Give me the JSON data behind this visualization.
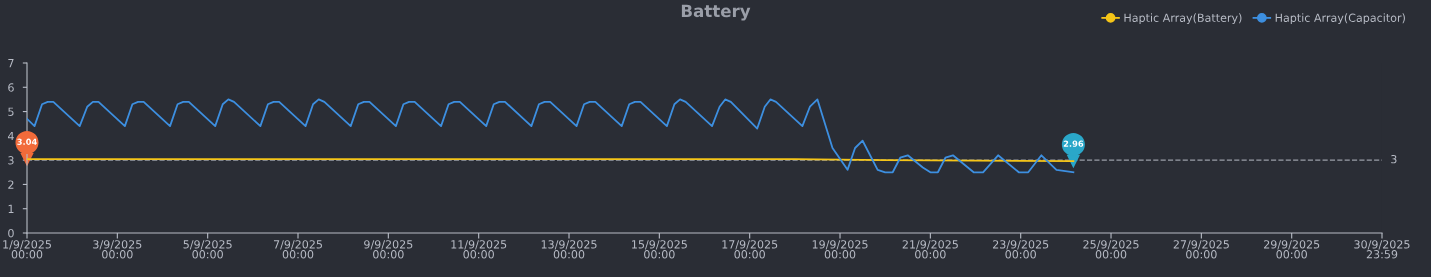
{
  "chart_data": {
    "type": "line",
    "title": "Battery",
    "legend": "top right",
    "grid": false,
    "xlim": [
      "2025-09-01T00:00",
      "2025-09-30T23:59"
    ],
    "ylim": [
      0,
      7
    ],
    "yticks": [
      0,
      1,
      2,
      3,
      4,
      5,
      6,
      7
    ],
    "xticks": [
      {
        "value": "2025-09-01T00:00",
        "label": "1/9/2025\n00:00"
      },
      {
        "value": "2025-09-03T00:00",
        "label": "3/9/2025\n00:00"
      },
      {
        "value": "2025-09-05T00:00",
        "label": "5/9/2025\n00:00"
      },
      {
        "value": "2025-09-07T00:00",
        "label": "7/9/2025\n00:00"
      },
      {
        "value": "2025-09-09T00:00",
        "label": "9/9/2025\n00:00"
      },
      {
        "value": "2025-09-11T00:00",
        "label": "11/9/2025\n00:00"
      },
      {
        "value": "2025-09-13T00:00",
        "label": "13/9/2025\n00:00"
      },
      {
        "value": "2025-09-15T00:00",
        "label": "15/9/2025\n00:00"
      },
      {
        "value": "2025-09-17T00:00",
        "label": "17/9/2025\n00:00"
      },
      {
        "value": "2025-09-19T00:00",
        "label": "19/9/2025\n00:00"
      },
      {
        "value": "2025-09-21T00:00",
        "label": "21/9/2025\n00:00"
      },
      {
        "value": "2025-09-23T00:00",
        "label": "23/9/2025\n00:00"
      },
      {
        "value": "2025-09-25T00:00",
        "label": "25/9/2025\n00:00"
      },
      {
        "value": "2025-09-27T00:00",
        "label": "27/9/2025\n00:00"
      },
      {
        "value": "2025-09-29T00:00",
        "label": "29/9/2025\n00:00"
      },
      {
        "value": "2025-09-30T23:59",
        "label": "30/9/2025\n23:59"
      }
    ],
    "series": [
      {
        "name": "Haptic Array(Battery)",
        "color": "#f5c518",
        "x": [
          "2025-09-01T00:00",
          "2025-09-18T00:00",
          "2025-09-20T00:00",
          "2025-09-24T04:00"
        ],
        "values": [
          3.04,
          3.04,
          3.0,
          2.96
        ]
      },
      {
        "name": "Haptic Array(Capacitor)",
        "color": "#3d8fe0",
        "x": [
          "2025-09-01T00:00",
          "2025-09-01T04:00",
          "2025-09-01T08:00",
          "2025-09-01T11:00",
          "2025-09-01T14:00",
          "2025-09-02T04:00",
          "2025-09-02T08:00",
          "2025-09-02T11:00",
          "2025-09-02T14:00",
          "2025-09-03T04:00",
          "2025-09-03T08:00",
          "2025-09-03T11:00",
          "2025-09-03T14:00",
          "2025-09-04T04:00",
          "2025-09-04T08:00",
          "2025-09-04T11:00",
          "2025-09-04T14:00",
          "2025-09-05T04:00",
          "2025-09-05T08:00",
          "2025-09-05T11:00",
          "2025-09-05T14:00",
          "2025-09-06T04:00",
          "2025-09-06T08:00",
          "2025-09-06T11:00",
          "2025-09-06T14:00",
          "2025-09-07T04:00",
          "2025-09-07T08:00",
          "2025-09-07T11:00",
          "2025-09-07T14:00",
          "2025-09-08T04:00",
          "2025-09-08T08:00",
          "2025-09-08T11:00",
          "2025-09-08T14:00",
          "2025-09-09T04:00",
          "2025-09-09T08:00",
          "2025-09-09T11:00",
          "2025-09-09T14:00",
          "2025-09-10T04:00",
          "2025-09-10T08:00",
          "2025-09-10T11:00",
          "2025-09-10T14:00",
          "2025-09-11T04:00",
          "2025-09-11T08:00",
          "2025-09-11T11:00",
          "2025-09-11T14:00",
          "2025-09-12T04:00",
          "2025-09-12T08:00",
          "2025-09-12T11:00",
          "2025-09-12T14:00",
          "2025-09-13T04:00",
          "2025-09-13T08:00",
          "2025-09-13T11:00",
          "2025-09-13T14:00",
          "2025-09-14T04:00",
          "2025-09-14T08:00",
          "2025-09-14T11:00",
          "2025-09-14T14:00",
          "2025-09-15T04:00",
          "2025-09-15T08:00",
          "2025-09-15T11:00",
          "2025-09-15T14:00",
          "2025-09-16T04:00",
          "2025-09-16T08:00",
          "2025-09-16T11:00",
          "2025-09-16T14:00",
          "2025-09-17T04:00",
          "2025-09-17T08:00",
          "2025-09-17T11:00",
          "2025-09-17T14:00",
          "2025-09-18T04:00",
          "2025-09-18T08:00",
          "2025-09-18T12:00",
          "2025-09-18T20:00",
          "2025-09-19T04:00",
          "2025-09-19T08:00",
          "2025-09-19T12:00",
          "2025-09-19T20:00",
          "2025-09-20T00:00",
          "2025-09-20T04:00",
          "2025-09-20T08:00",
          "2025-09-20T12:00",
          "2025-09-20T20:00",
          "2025-09-21T00:00",
          "2025-09-21T04:00",
          "2025-09-21T08:00",
          "2025-09-21T12:00",
          "2025-09-21T23:00",
          "2025-09-22T04:00",
          "2025-09-22T12:00",
          "2025-09-22T23:00",
          "2025-09-23T04:00",
          "2025-09-23T11:00",
          "2025-09-23T19:00",
          "2025-09-24T04:00"
        ],
        "values": [
          4.7,
          4.4,
          5.3,
          5.4,
          5.4,
          4.4,
          5.2,
          5.4,
          5.4,
          4.4,
          5.3,
          5.4,
          5.4,
          4.4,
          5.3,
          5.4,
          5.4,
          4.4,
          5.3,
          5.5,
          5.4,
          4.4,
          5.3,
          5.4,
          5.4,
          4.4,
          5.3,
          5.5,
          5.4,
          4.4,
          5.3,
          5.4,
          5.4,
          4.4,
          5.3,
          5.4,
          5.4,
          4.4,
          5.3,
          5.4,
          5.4,
          4.4,
          5.3,
          5.4,
          5.4,
          4.4,
          5.3,
          5.4,
          5.4,
          4.4,
          5.3,
          5.4,
          5.4,
          4.4,
          5.3,
          5.4,
          5.4,
          4.4,
          5.3,
          5.5,
          5.4,
          4.4,
          5.2,
          5.5,
          5.4,
          4.3,
          5.2,
          5.5,
          5.4,
          4.4,
          5.2,
          5.5,
          3.5,
          2.6,
          3.5,
          3.8,
          2.6,
          2.5,
          2.5,
          3.1,
          3.2,
          2.7,
          2.5,
          2.5,
          3.1,
          3.2,
          2.5,
          2.5,
          3.2,
          2.5,
          2.5,
          3.2,
          2.6,
          2.5
        ]
      }
    ],
    "ref_lines": [
      {
        "axis": "y",
        "value": 3,
        "label": "3",
        "color": "#9a9ea8",
        "line_style": "dashed"
      }
    ],
    "annotations": [
      {
        "text": "3.04",
        "x": "2025-09-01T00:00",
        "y": 3.04
      },
      {
        "text": "2.96",
        "x": "2025-09-24T04:00",
        "y": 2.96
      }
    ]
  }
}
